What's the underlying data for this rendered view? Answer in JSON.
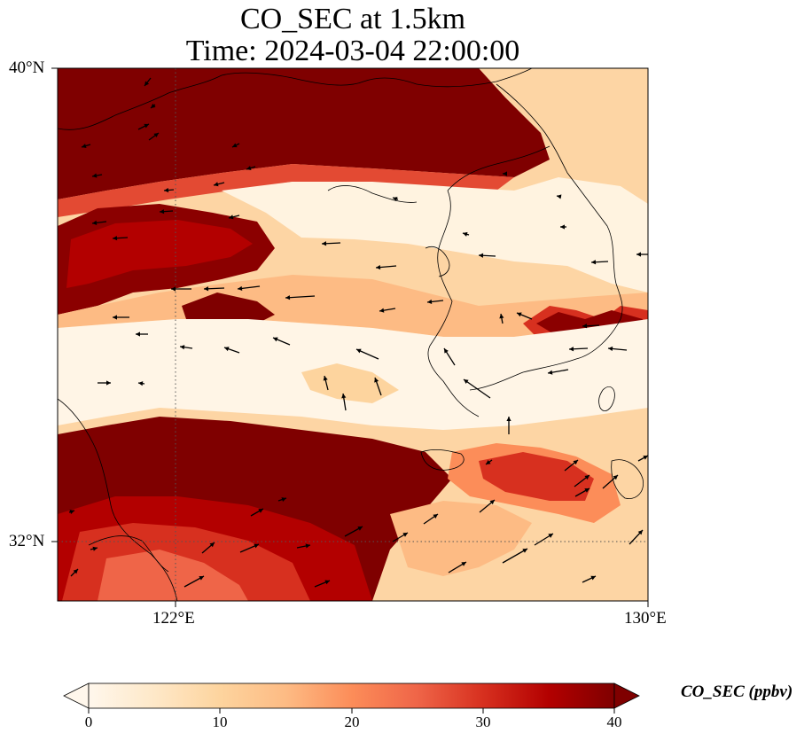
{
  "title": {
    "line1": "CO_SEC at 1.5km",
    "line2": "Time: 2024-03-04 22:00:00"
  },
  "map": {
    "lat_range": [
      31,
      40
    ],
    "lon_range": [
      120,
      130
    ],
    "lat_labels": [
      "40°N",
      "32°N"
    ],
    "lon_labels": [
      "122°E",
      "130°E"
    ],
    "gridlines": {
      "lat": 32,
      "lon": 122,
      "style": "dotted"
    },
    "colormap": "OrRd"
  },
  "colorbar": {
    "label": "CO_SEC (ppbv)",
    "ticks": [
      "0",
      "10",
      "20",
      "30",
      "40"
    ],
    "vmin": 0,
    "vmax": 40,
    "extend": "both",
    "colors": [
      "#fff7ec",
      "#fee8c8",
      "#fdd49e",
      "#fdbb84",
      "#fc8d59",
      "#ef6548",
      "#d7301f",
      "#b30000",
      "#7f0000"
    ]
  }
}
